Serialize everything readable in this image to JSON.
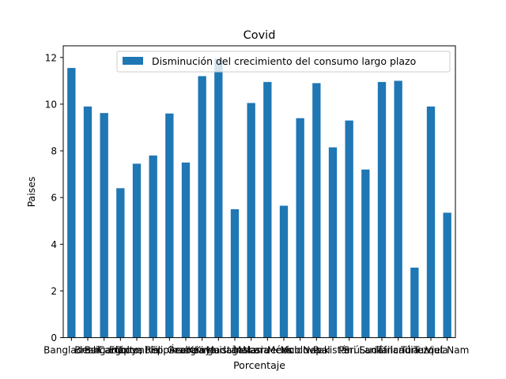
{
  "chart_data": {
    "type": "bar",
    "title": "Covid",
    "xlabel": "Porcentaje",
    "ylabel": "Paises",
    "ylim": [
      0,
      12.5
    ],
    "yticks": [
      "0",
      "2",
      "4",
      "6",
      "8",
      "10",
      "12"
    ],
    "legend_position": "top-right",
    "grid": false,
    "series": [
      {
        "name": "Disminución del crecimiento del consumo largo plazo",
        "color": "#1f77b4",
        "values": [
          11.55,
          9.9,
          9.62,
          6.4,
          7.45,
          7.8,
          9.6,
          7.5,
          11.2,
          11.95,
          5.5,
          10.05,
          10.95,
          5.65,
          9.4,
          10.9,
          8.15,
          9.3,
          7.2,
          10.95,
          11.0,
          3.0,
          9.9,
          5.35
        ]
      }
    ],
    "categories": [
      "Bangladesh",
      "Brasil",
      "Bulgaria",
      "Camboya",
      "Colombia",
      "Egipto, Rep. Árabe",
      "Filipinas",
      "Georgia",
      "Kenya",
      "Kirguistán",
      "Madagascar",
      "Malasia",
      "Marruecos",
      "México",
      "Moldova",
      "Nepal",
      "Pakistán",
      "Perú",
      "Sri Lanka",
      "Sudáfrica",
      "Tailandia",
      "Túnez",
      "Turquía",
      "Viet Nam"
    ]
  }
}
